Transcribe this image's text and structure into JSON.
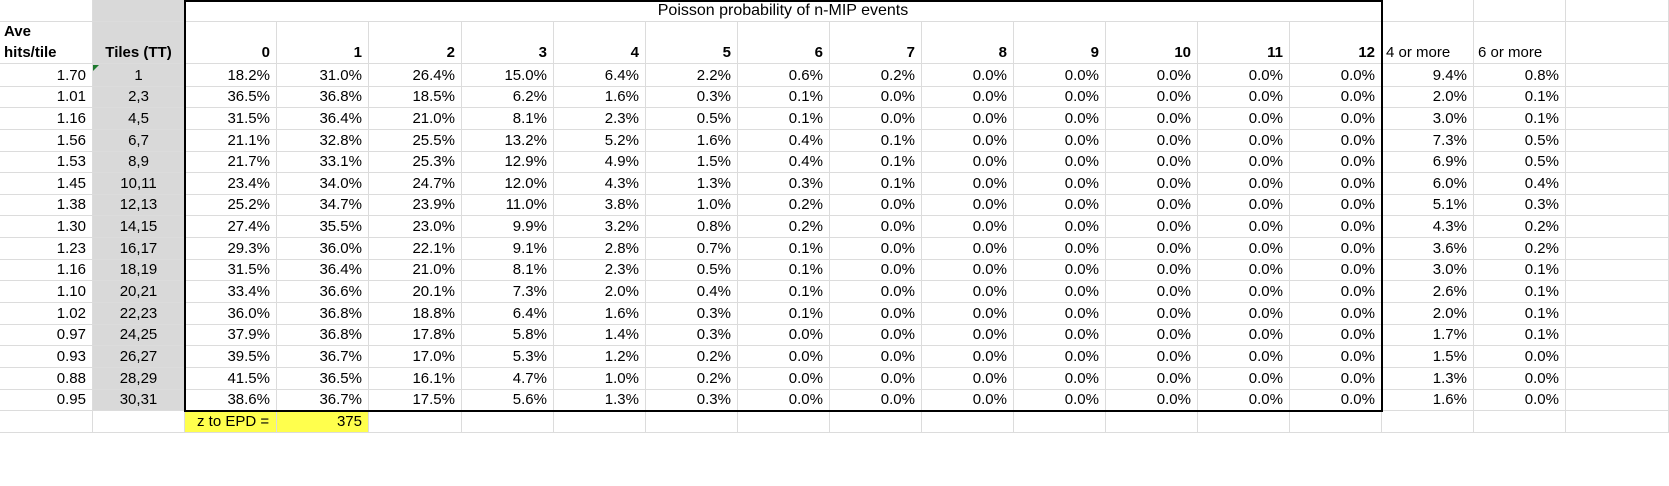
{
  "sheet": {
    "title": "Poisson probability of n-MIP events",
    "header_ave_line1": "Ave",
    "header_ave_line2": "hits/tile",
    "header_tiles": "Tiles (TT)",
    "columns": [
      "0",
      "1",
      "2",
      "3",
      "4",
      "5",
      "6",
      "7",
      "8",
      "9",
      "10",
      "11",
      "12"
    ],
    "extra_columns": [
      "4 or more",
      "6 or more"
    ],
    "rows": [
      {
        "ave": "1.70",
        "tiles": "1",
        "p": [
          "18.2%",
          "31.0%",
          "26.4%",
          "15.0%",
          "6.4%",
          "2.2%",
          "0.6%",
          "0.2%",
          "0.0%",
          "0.0%",
          "0.0%",
          "0.0%",
          "0.0%"
        ],
        "four": "9.4%",
        "six": "0.8%"
      },
      {
        "ave": "1.01",
        "tiles": "2,3",
        "p": [
          "36.5%",
          "36.8%",
          "18.5%",
          "6.2%",
          "1.6%",
          "0.3%",
          "0.1%",
          "0.0%",
          "0.0%",
          "0.0%",
          "0.0%",
          "0.0%",
          "0.0%"
        ],
        "four": "2.0%",
        "six": "0.1%"
      },
      {
        "ave": "1.16",
        "tiles": "4,5",
        "p": [
          "31.5%",
          "36.4%",
          "21.0%",
          "8.1%",
          "2.3%",
          "0.5%",
          "0.1%",
          "0.0%",
          "0.0%",
          "0.0%",
          "0.0%",
          "0.0%",
          "0.0%"
        ],
        "four": "3.0%",
        "six": "0.1%"
      },
      {
        "ave": "1.56",
        "tiles": "6,7",
        "p": [
          "21.1%",
          "32.8%",
          "25.5%",
          "13.2%",
          "5.2%",
          "1.6%",
          "0.4%",
          "0.1%",
          "0.0%",
          "0.0%",
          "0.0%",
          "0.0%",
          "0.0%"
        ],
        "four": "7.3%",
        "six": "0.5%"
      },
      {
        "ave": "1.53",
        "tiles": "8,9",
        "p": [
          "21.7%",
          "33.1%",
          "25.3%",
          "12.9%",
          "4.9%",
          "1.5%",
          "0.4%",
          "0.1%",
          "0.0%",
          "0.0%",
          "0.0%",
          "0.0%",
          "0.0%"
        ],
        "four": "6.9%",
        "six": "0.5%"
      },
      {
        "ave": "1.45",
        "tiles": "10,11",
        "p": [
          "23.4%",
          "34.0%",
          "24.7%",
          "12.0%",
          "4.3%",
          "1.3%",
          "0.3%",
          "0.1%",
          "0.0%",
          "0.0%",
          "0.0%",
          "0.0%",
          "0.0%"
        ],
        "four": "6.0%",
        "six": "0.4%"
      },
      {
        "ave": "1.38",
        "tiles": "12,13",
        "p": [
          "25.2%",
          "34.7%",
          "23.9%",
          "11.0%",
          "3.8%",
          "1.0%",
          "0.2%",
          "0.0%",
          "0.0%",
          "0.0%",
          "0.0%",
          "0.0%",
          "0.0%"
        ],
        "four": "5.1%",
        "six": "0.3%"
      },
      {
        "ave": "1.30",
        "tiles": "14,15",
        "p": [
          "27.4%",
          "35.5%",
          "23.0%",
          "9.9%",
          "3.2%",
          "0.8%",
          "0.2%",
          "0.0%",
          "0.0%",
          "0.0%",
          "0.0%",
          "0.0%",
          "0.0%"
        ],
        "four": "4.3%",
        "six": "0.2%"
      },
      {
        "ave": "1.23",
        "tiles": "16,17",
        "p": [
          "29.3%",
          "36.0%",
          "22.1%",
          "9.1%",
          "2.8%",
          "0.7%",
          "0.1%",
          "0.0%",
          "0.0%",
          "0.0%",
          "0.0%",
          "0.0%",
          "0.0%"
        ],
        "four": "3.6%",
        "six": "0.2%"
      },
      {
        "ave": "1.16",
        "tiles": "18,19",
        "p": [
          "31.5%",
          "36.4%",
          "21.0%",
          "8.1%",
          "2.3%",
          "0.5%",
          "0.1%",
          "0.0%",
          "0.0%",
          "0.0%",
          "0.0%",
          "0.0%",
          "0.0%"
        ],
        "four": "3.0%",
        "six": "0.1%"
      },
      {
        "ave": "1.10",
        "tiles": "20,21",
        "p": [
          "33.4%",
          "36.6%",
          "20.1%",
          "7.3%",
          "2.0%",
          "0.4%",
          "0.1%",
          "0.0%",
          "0.0%",
          "0.0%",
          "0.0%",
          "0.0%",
          "0.0%"
        ],
        "four": "2.6%",
        "six": "0.1%"
      },
      {
        "ave": "1.02",
        "tiles": "22,23",
        "p": [
          "36.0%",
          "36.8%",
          "18.8%",
          "6.4%",
          "1.6%",
          "0.3%",
          "0.1%",
          "0.0%",
          "0.0%",
          "0.0%",
          "0.0%",
          "0.0%",
          "0.0%"
        ],
        "four": "2.0%",
        "six": "0.1%"
      },
      {
        "ave": "0.97",
        "tiles": "24,25",
        "p": [
          "37.9%",
          "36.8%",
          "17.8%",
          "5.8%",
          "1.4%",
          "0.3%",
          "0.0%",
          "0.0%",
          "0.0%",
          "0.0%",
          "0.0%",
          "0.0%",
          "0.0%"
        ],
        "four": "1.7%",
        "six": "0.1%"
      },
      {
        "ave": "0.93",
        "tiles": "26,27",
        "p": [
          "39.5%",
          "36.7%",
          "17.0%",
          "5.3%",
          "1.2%",
          "0.2%",
          "0.0%",
          "0.0%",
          "0.0%",
          "0.0%",
          "0.0%",
          "0.0%",
          "0.0%"
        ],
        "four": "1.5%",
        "six": "0.0%"
      },
      {
        "ave": "0.88",
        "tiles": "28,29",
        "p": [
          "41.5%",
          "36.5%",
          "16.1%",
          "4.7%",
          "1.0%",
          "0.2%",
          "0.0%",
          "0.0%",
          "0.0%",
          "0.0%",
          "0.0%",
          "0.0%",
          "0.0%"
        ],
        "four": "1.3%",
        "six": "0.0%"
      },
      {
        "ave": "0.95",
        "tiles": "30,31",
        "p": [
          "38.6%",
          "36.7%",
          "17.5%",
          "5.6%",
          "1.3%",
          "0.3%",
          "0.0%",
          "0.0%",
          "0.0%",
          "0.0%",
          "0.0%",
          "0.0%",
          "0.0%"
        ],
        "four": "1.6%",
        "six": "0.0%"
      }
    ],
    "footer_label": "z to EPD =",
    "footer_value": "375"
  },
  "colors": {
    "grid_line": "#dcdcdc",
    "gray_column": "#d9d9d9",
    "yellow_highlight": "#ffff4d",
    "border": "#000000",
    "comment_marker": "#1e7a2e"
  }
}
